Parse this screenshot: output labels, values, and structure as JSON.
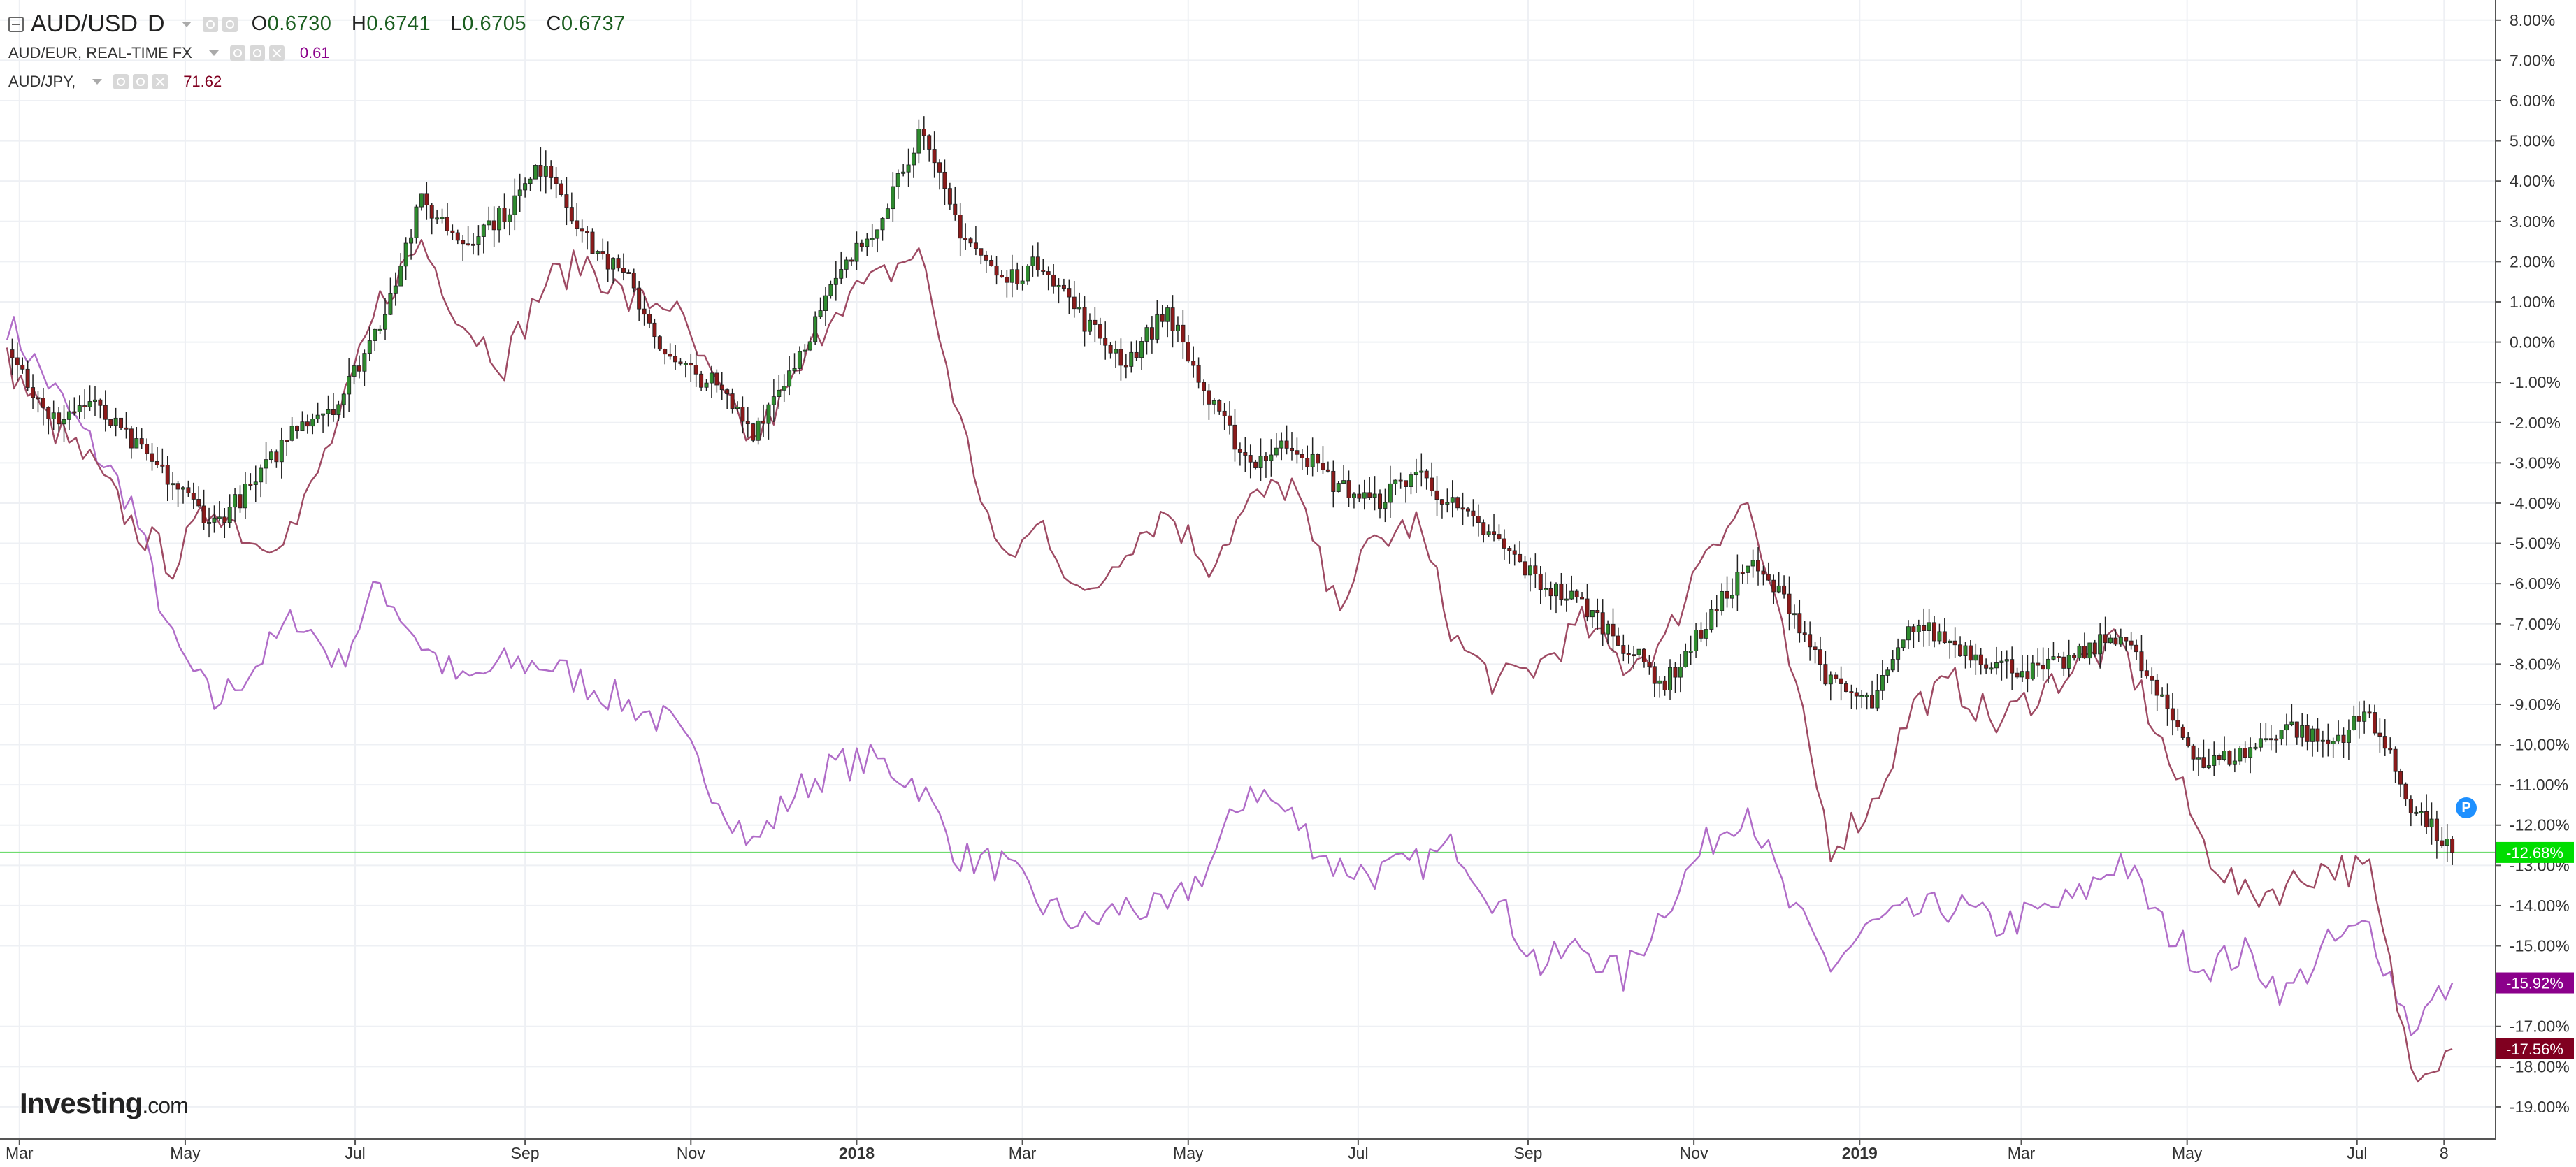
{
  "legend": {
    "main": {
      "symbol": "AUD/USD",
      "interval": "D",
      "o_label": "O",
      "o": "0.6730",
      "h_label": "H",
      "h": "0.6741",
      "l_label": "L",
      "l": "0.6705",
      "c_label": "C",
      "c": "0.6737"
    },
    "series2": {
      "label": "AUD/EUR, REAL-TIME FX",
      "value": "0.61",
      "color": "#8b008b"
    },
    "series3": {
      "label": "AUD/JPY,",
      "value": "71.62",
      "color": "#800020"
    }
  },
  "logo": {
    "text": "Investing",
    "suffix": ".com"
  },
  "badge": "P",
  "colors": {
    "up": "#2e8b2e",
    "down": "#8b1a1a",
    "wick": "#222222",
    "eur": "#b06cc8",
    "jpy": "#9e4a63",
    "grid": "#eef0f4",
    "baseline": "#6fdc6f"
  },
  "chart_data": {
    "type": "line",
    "title": "",
    "xlabel": "",
    "ylabel": "",
    "ylim": [
      -19.8,
      8.5
    ],
    "y_ticks": [
      "8.00%",
      "7.00%",
      "6.00%",
      "5.00%",
      "4.00%",
      "3.00%",
      "2.00%",
      "1.00%",
      "0.00%",
      "-1.00%",
      "-2.00%",
      "-3.00%",
      "-4.00%",
      "-5.00%",
      "-6.00%",
      "-7.00%",
      "-8.00%",
      "-9.00%",
      "-10.00%",
      "-11.00%",
      "-12.00%",
      "-13.00%",
      "-14.00%",
      "-15.00%",
      "-17.00%",
      "-18.00%",
      "-19.00%"
    ],
    "x_ticks": [
      {
        "label": "Mar",
        "t": 0.3,
        "bold": false
      },
      {
        "label": "May",
        "t": 4.3,
        "bold": false
      },
      {
        "label": "Jul",
        "t": 8.4,
        "bold": false
      },
      {
        "label": "Sep",
        "t": 12.5,
        "bold": false
      },
      {
        "label": "Nov",
        "t": 16.5,
        "bold": false
      },
      {
        "label": "2018",
        "t": 20.5,
        "bold": true
      },
      {
        "label": "Mar",
        "t": 24.5,
        "bold": false
      },
      {
        "label": "May",
        "t": 28.5,
        "bold": false
      },
      {
        "label": "Jul",
        "t": 32.6,
        "bold": false
      },
      {
        "label": "Sep",
        "t": 36.7,
        "bold": false
      },
      {
        "label": "Nov",
        "t": 40.7,
        "bold": false
      },
      {
        "label": "2019",
        "t": 44.7,
        "bold": true
      },
      {
        "label": "Mar",
        "t": 48.6,
        "bold": false
      },
      {
        "label": "May",
        "t": 52.6,
        "bold": false
      },
      {
        "label": "Jul",
        "t": 56.7,
        "bold": false
      },
      {
        "label": "8",
        "t": 58.8,
        "bold": false
      }
    ],
    "price_tags": [
      {
        "value": -12.68,
        "label": "-12.68%",
        "color": "#00dd00"
      },
      {
        "value": -15.92,
        "label": "-15.92%",
        "color": "#8b008b"
      },
      {
        "value": -17.56,
        "label": "-17.56%",
        "color": "#800020"
      }
    ],
    "series": [
      {
        "name": "AUD/USD",
        "style": "candlestick",
        "points": [
          [
            0.0,
            0.0
          ],
          [
            1.0,
            -2.0
          ],
          [
            2.0,
            -1.5
          ],
          [
            3.0,
            -2.5
          ],
          [
            4.0,
            -3.5
          ],
          [
            5.0,
            -4.5
          ],
          [
            6.0,
            -3.5
          ],
          [
            7.0,
            -2.0
          ],
          [
            8.0,
            -1.5
          ],
          [
            9.0,
            0.5
          ],
          [
            10.0,
            3.5
          ],
          [
            11.0,
            2.5
          ],
          [
            12.0,
            3.2
          ],
          [
            13.0,
            4.5
          ],
          [
            14.0,
            2.5
          ],
          [
            15.0,
            1.5
          ],
          [
            16.0,
            -0.5
          ],
          [
            17.0,
            -1.0
          ],
          [
            18.0,
            -2.2
          ],
          [
            19.0,
            -0.5
          ],
          [
            20.0,
            1.5
          ],
          [
            21.0,
            3.0
          ],
          [
            22.0,
            5.2
          ],
          [
            23.0,
            2.8
          ],
          [
            24.0,
            1.5
          ],
          [
            25.0,
            2.0
          ],
          [
            26.0,
            0.5
          ],
          [
            27.0,
            -0.5
          ],
          [
            28.0,
            0.8
          ],
          [
            29.0,
            -1.5
          ],
          [
            30.0,
            -3.0
          ],
          [
            31.0,
            -2.5
          ],
          [
            32.0,
            -3.5
          ],
          [
            33.0,
            -4.0
          ],
          [
            34.0,
            -3.2
          ],
          [
            35.0,
            -4.2
          ],
          [
            36.0,
            -5.0
          ],
          [
            37.0,
            -6.0
          ],
          [
            38.0,
            -6.5
          ],
          [
            39.0,
            -7.5
          ],
          [
            40.0,
            -8.5
          ],
          [
            41.0,
            -7.0
          ],
          [
            42.0,
            -5.5
          ],
          [
            43.0,
            -6.5
          ],
          [
            44.0,
            -8.5
          ],
          [
            45.0,
            -9.0
          ],
          [
            46.0,
            -7.0
          ],
          [
            47.0,
            -7.5
          ],
          [
            48.0,
            -8.0
          ],
          [
            49.0,
            -8.2
          ],
          [
            50.0,
            -7.8
          ],
          [
            51.0,
            -7.2
          ],
          [
            52.0,
            -9.0
          ],
          [
            53.0,
            -10.5
          ],
          [
            54.0,
            -10.2
          ],
          [
            55.0,
            -9.5
          ],
          [
            56.0,
            -10.0
          ],
          [
            57.0,
            -9.2
          ],
          [
            58.0,
            -11.5
          ],
          [
            59.0,
            -12.68
          ]
        ]
      },
      {
        "name": "AUD/EUR, REAL-TIME FX",
        "style": "line",
        "points": [
          [
            0.0,
            0.5
          ],
          [
            1.0,
            -1.0
          ],
          [
            2.0,
            -2.5
          ],
          [
            3.0,
            -4.0
          ],
          [
            4.0,
            -7.5
          ],
          [
            5.0,
            -9.0
          ],
          [
            6.0,
            -8.0
          ],
          [
            7.0,
            -6.8
          ],
          [
            8.0,
            -8.0
          ],
          [
            9.0,
            -6.0
          ],
          [
            10.0,
            -7.5
          ],
          [
            11.0,
            -8.5
          ],
          [
            12.0,
            -8.0
          ],
          [
            13.0,
            -8.0
          ],
          [
            14.0,
            -8.5
          ],
          [
            15.0,
            -9.0
          ],
          [
            16.0,
            -9.5
          ],
          [
            17.0,
            -11.0
          ],
          [
            18.0,
            -12.5
          ],
          [
            19.0,
            -11.2
          ],
          [
            20.0,
            -10.5
          ],
          [
            21.0,
            -10.4
          ],
          [
            22.0,
            -11.0
          ],
          [
            23.0,
            -12.8
          ],
          [
            24.0,
            -13.0
          ],
          [
            25.0,
            -14.0
          ],
          [
            26.0,
            -14.5
          ],
          [
            27.0,
            -14.0
          ],
          [
            28.0,
            -14.2
          ],
          [
            29.0,
            -13.0
          ],
          [
            30.0,
            -11.0
          ],
          [
            31.0,
            -11.8
          ],
          [
            32.0,
            -13.0
          ],
          [
            33.0,
            -13.2
          ],
          [
            34.0,
            -13.0
          ],
          [
            35.0,
            -12.5
          ],
          [
            36.0,
            -14.0
          ],
          [
            37.0,
            -15.5
          ],
          [
            38.0,
            -15.0
          ],
          [
            39.0,
            -15.8
          ],
          [
            40.0,
            -14.0
          ],
          [
            41.0,
            -12.5
          ],
          [
            42.0,
            -11.5
          ],
          [
            43.0,
            -14.0
          ],
          [
            44.0,
            -15.5
          ],
          [
            45.0,
            -14.5
          ],
          [
            46.0,
            -14.2
          ],
          [
            47.0,
            -14.0
          ],
          [
            48.0,
            -14.5
          ],
          [
            49.0,
            -14.2
          ],
          [
            50.0,
            -13.8
          ],
          [
            51.0,
            -12.8
          ],
          [
            52.0,
            -14.5
          ],
          [
            53.0,
            -15.5
          ],
          [
            54.0,
            -15.2
          ],
          [
            55.0,
            -16.2
          ],
          [
            56.0,
            -15.0
          ],
          [
            57.0,
            -14.5
          ],
          [
            58.0,
            -17.0
          ],
          [
            59.0,
            -15.92
          ]
        ]
      },
      {
        "name": "AUD/JPY,",
        "style": "line",
        "points": [
          [
            0.0,
            -0.5
          ],
          [
            1.0,
            -2.0
          ],
          [
            2.0,
            -3.0
          ],
          [
            3.0,
            -4.5
          ],
          [
            4.0,
            -5.5
          ],
          [
            5.0,
            -4.0
          ],
          [
            6.0,
            -5.0
          ],
          [
            7.0,
            -4.5
          ],
          [
            8.0,
            -2.0
          ],
          [
            9.0,
            1.0
          ],
          [
            10.0,
            2.5
          ],
          [
            11.0,
            0.5
          ],
          [
            12.0,
            -0.5
          ],
          [
            13.0,
            1.5
          ],
          [
            14.0,
            2.0
          ],
          [
            15.0,
            1.0
          ],
          [
            16.0,
            1.0
          ],
          [
            17.0,
            -1.0
          ],
          [
            18.0,
            -2.5
          ],
          [
            19.0,
            -1.0
          ],
          [
            20.0,
            1.0
          ],
          [
            21.0,
            1.5
          ],
          [
            22.0,
            2.3
          ],
          [
            23.0,
            -2.0
          ],
          [
            24.0,
            -5.5
          ],
          [
            25.0,
            -4.5
          ],
          [
            26.0,
            -6.5
          ],
          [
            27.0,
            -5.0
          ],
          [
            28.0,
            -4.2
          ],
          [
            29.0,
            -5.5
          ],
          [
            30.0,
            -4.0
          ],
          [
            31.0,
            -3.5
          ],
          [
            32.0,
            -6.5
          ],
          [
            33.0,
            -5.0
          ],
          [
            34.0,
            -4.5
          ],
          [
            35.0,
            -7.5
          ],
          [
            36.0,
            -8.5
          ],
          [
            37.0,
            -8.0
          ],
          [
            38.0,
            -7.0
          ],
          [
            39.0,
            -8.0
          ],
          [
            40.0,
            -7.5
          ],
          [
            41.0,
            -5.0
          ],
          [
            42.0,
            -4.0
          ],
          [
            43.0,
            -8.0
          ],
          [
            44.0,
            -12.5
          ],
          [
            45.0,
            -11.5
          ],
          [
            46.0,
            -9.0
          ],
          [
            47.0,
            -8.5
          ],
          [
            48.0,
            -9.5
          ],
          [
            49.0,
            -8.7
          ],
          [
            50.0,
            -8.0
          ],
          [
            51.0,
            -7.5
          ],
          [
            52.0,
            -10.0
          ],
          [
            53.0,
            -12.5
          ],
          [
            54.0,
            -13.8
          ],
          [
            55.0,
            -13.5
          ],
          [
            56.0,
            -13.0
          ],
          [
            57.0,
            -13.2
          ],
          [
            58.0,
            -18.0
          ],
          [
            59.0,
            -17.56
          ]
        ]
      }
    ]
  }
}
